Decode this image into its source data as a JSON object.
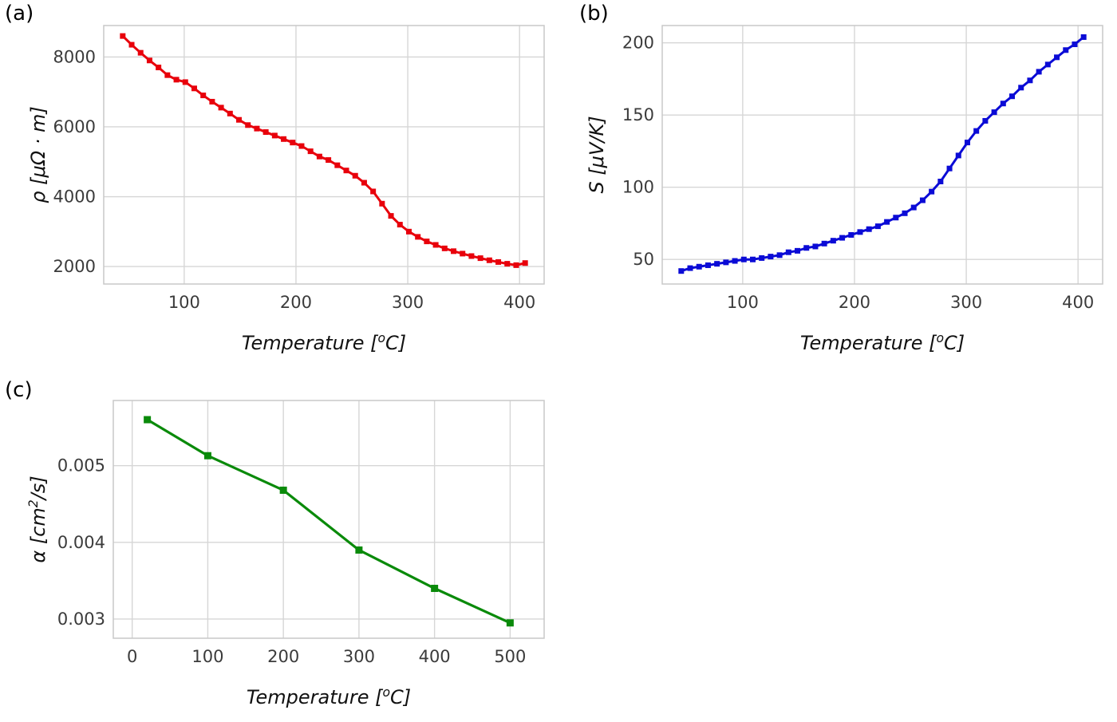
{
  "figure": {
    "panels": [
      {
        "label": "(a)"
      },
      {
        "label": "(b)"
      },
      {
        "label": "(c)"
      }
    ]
  },
  "chart_data": [
    {
      "type": "line",
      "title": "",
      "xlabel": "Temperature [^{o}C]",
      "ylabel": "ρ [μΩ · m]",
      "xlim": [
        28,
        422
      ],
      "ylim": [
        1500,
        8900
      ],
      "xticks": [
        100,
        200,
        300,
        400
      ],
      "xtick_labels": [
        "100",
        "200",
        "300",
        "400"
      ],
      "yticks": [
        2000,
        4000,
        6000,
        8000
      ],
      "ytick_labels": [
        "2000",
        "4000",
        "6000",
        "8000"
      ],
      "grid": true,
      "legend": false,
      "series": [
        {
          "name": "electrical-resistivity",
          "color": "#e8000b",
          "marker": "square",
          "marker_size": 7,
          "line_width": 3,
          "x": [
            45,
            53,
            61,
            69,
            77,
            85,
            93,
            101,
            109,
            117,
            125,
            133,
            141,
            149,
            157,
            165,
            173,
            181,
            189,
            197,
            205,
            213,
            221,
            229,
            237,
            245,
            253,
            261,
            269,
            277,
            285,
            293,
            301,
            309,
            317,
            325,
            333,
            341,
            349,
            357,
            365,
            373,
            381,
            389,
            397,
            405
          ],
          "y": [
            8600,
            8350,
            8120,
            7900,
            7700,
            7480,
            7350,
            7280,
            7100,
            6900,
            6720,
            6550,
            6380,
            6200,
            6050,
            5950,
            5850,
            5750,
            5650,
            5550,
            5450,
            5300,
            5150,
            5050,
            4900,
            4750,
            4600,
            4400,
            4150,
            3800,
            3450,
            3200,
            3000,
            2850,
            2720,
            2620,
            2520,
            2440,
            2370,
            2300,
            2240,
            2180,
            2130,
            2080,
            2040,
            2100
          ]
        }
      ]
    },
    {
      "type": "line",
      "title": "",
      "xlabel": "Temperature [^{o}C]",
      "ylabel": "S [μV/K]",
      "xlim": [
        28,
        422
      ],
      "ylim": [
        33,
        212
      ],
      "xticks": [
        100,
        200,
        300,
        400
      ],
      "xtick_labels": [
        "100",
        "200",
        "300",
        "400"
      ],
      "yticks": [
        50,
        100,
        150,
        200
      ],
      "ytick_labels": [
        "50",
        "100",
        "150",
        "200"
      ],
      "grid": true,
      "legend": false,
      "series": [
        {
          "name": "seebeck-coefficient",
          "color": "#0b0bd6",
          "marker": "square",
          "marker_size": 7,
          "line_width": 3,
          "x": [
            45,
            53,
            61,
            69,
            77,
            85,
            93,
            101,
            109,
            117,
            125,
            133,
            141,
            149,
            157,
            165,
            173,
            181,
            189,
            197,
            205,
            213,
            221,
            229,
            237,
            245,
            253,
            261,
            269,
            277,
            285,
            293,
            301,
            309,
            317,
            325,
            333,
            341,
            349,
            357,
            365,
            373,
            381,
            389,
            397,
            405
          ],
          "y": [
            42,
            44,
            45,
            46,
            47,
            48,
            49,
            50,
            50,
            51,
            52,
            53,
            55,
            56,
            58,
            59,
            61,
            63,
            65,
            67,
            69,
            71,
            73,
            76,
            79,
            82,
            86,
            91,
            97,
            104,
            113,
            122,
            131,
            139,
            146,
            152,
            158,
            163,
            169,
            174,
            180,
            185,
            190,
            195,
            199,
            204
          ]
        }
      ]
    },
    {
      "type": "line",
      "title": "",
      "xlabel": "Temperature [^{o}C]",
      "ylabel": "α [cm^{2}/s]",
      "xlim": [
        -25,
        545
      ],
      "ylim": [
        0.00275,
        0.00585
      ],
      "xticks": [
        0,
        100,
        200,
        300,
        400,
        500
      ],
      "xtick_labels": [
        "0",
        "100",
        "200",
        "300",
        "400",
        "500"
      ],
      "yticks": [
        0.003,
        0.004,
        0.005
      ],
      "ytick_labels": [
        "0.003",
        "0.004",
        "0.005"
      ],
      "grid": true,
      "legend": false,
      "series": [
        {
          "name": "thermal-diffusivity",
          "color": "#0a8a0a",
          "marker": "square",
          "marker_size": 9,
          "line_width": 3.2,
          "x": [
            20,
            100,
            200,
            300,
            400,
            500
          ],
          "y": [
            0.0056,
            0.00513,
            0.00468,
            0.0039,
            0.0034,
            0.00295
          ]
        }
      ]
    }
  ]
}
